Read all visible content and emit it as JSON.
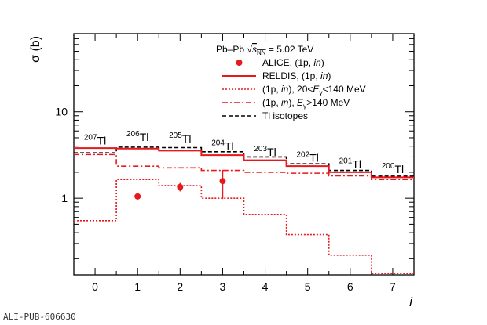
{
  "chart_data": {
    "type": "step",
    "title": "Pb–Pb √s_NN = 5.02 TeV",
    "xlabel": "i",
    "ylabel": "σ (b)",
    "xlim": [
      -0.5,
      7.5
    ],
    "ylim": [
      0.13,
      80
    ],
    "yscale": "log",
    "x_ticks": [
      "0",
      "1",
      "2",
      "3",
      "4",
      "5",
      "6",
      "7"
    ],
    "y_tick_labels": [
      {
        "value": 1,
        "label": "1"
      },
      {
        "value": 10,
        "label": "10"
      }
    ],
    "legend_header": {
      "system": "Pb–Pb",
      "sqrt_s": "s",
      "sqrt_s_sub": "NN",
      "energy": "= 5.02 TeV"
    },
    "legend": [
      {
        "key": "alice",
        "style": "marker",
        "label": "ALICE,  (1p, in)"
      },
      {
        "key": "reldis",
        "style": "solid",
        "label": "RELDIS, (1p, in)"
      },
      {
        "key": "low",
        "style": "dotted",
        "label": "(1p, in), 20<E_γ<140 MeV"
      },
      {
        "key": "high",
        "style": "dashdot",
        "label": "(1p, in), E_γ>140 MeV"
      },
      {
        "key": "tl",
        "style": "dashed",
        "label": "Tl isotopes"
      }
    ],
    "series": [
      {
        "name": "ALICE, (1p, in)",
        "kind": "points",
        "x": [
          1,
          2,
          3
        ],
        "y": [
          1.05,
          1.35,
          1.58
        ],
        "yerr_low": [
          0.0,
          0.15,
          0.6
        ],
        "yerr_high": [
          0.0,
          0.15,
          0.55
        ]
      },
      {
        "name": "RELDIS, (1p, in)",
        "kind": "step",
        "x": [
          0,
          1,
          2,
          3,
          4,
          5,
          6,
          7
        ],
        "y": [
          3.8,
          3.75,
          3.55,
          3.15,
          2.75,
          2.35,
          2.0,
          1.75
        ]
      },
      {
        "name": "(1p, in), 20<E_γ<140 MeV",
        "kind": "step",
        "x": [
          0,
          1,
          2,
          3,
          4,
          5,
          6,
          7
        ],
        "y": [
          0.55,
          1.65,
          1.4,
          1.0,
          0.65,
          0.38,
          0.22,
          0.135
        ]
      },
      {
        "name": "(1p, in), E_γ>140 MeV",
        "kind": "step",
        "x": [
          0,
          1,
          2,
          3,
          4,
          5,
          6,
          7
        ],
        "y": [
          3.2,
          2.35,
          2.25,
          2.1,
          2.0,
          1.95,
          1.82,
          1.65
        ]
      },
      {
        "name": "Tl isotopes",
        "kind": "step",
        "x": [
          0,
          1,
          2,
          3,
          4,
          5,
          6,
          7
        ],
        "y": [
          3.35,
          3.9,
          3.85,
          3.45,
          3.0,
          2.5,
          2.1,
          1.8
        ]
      }
    ],
    "annotations": [
      {
        "mass": "207",
        "element": "Tl",
        "x": 0,
        "y": 4.2
      },
      {
        "mass": "206",
        "element": "Tl",
        "x": 1,
        "y": 4.6
      },
      {
        "mass": "205",
        "element": "Tl",
        "x": 2,
        "y": 4.4
      },
      {
        "mass": "204",
        "element": "Tl",
        "x": 3,
        "y": 3.6
      },
      {
        "mass": "203",
        "element": "Tl",
        "x": 4,
        "y": 3.1
      },
      {
        "mass": "202",
        "element": "Tl",
        "x": 5,
        "y": 2.65
      },
      {
        "mass": "201",
        "element": "Tl",
        "x": 6,
        "y": 2.25
      },
      {
        "mass": "200",
        "element": "Tl",
        "x": 7,
        "y": 1.95
      }
    ],
    "colors": {
      "red": "#e8191c",
      "black": "#000000"
    }
  },
  "footer": {
    "pub_id": "ALI-PUB-606630"
  }
}
